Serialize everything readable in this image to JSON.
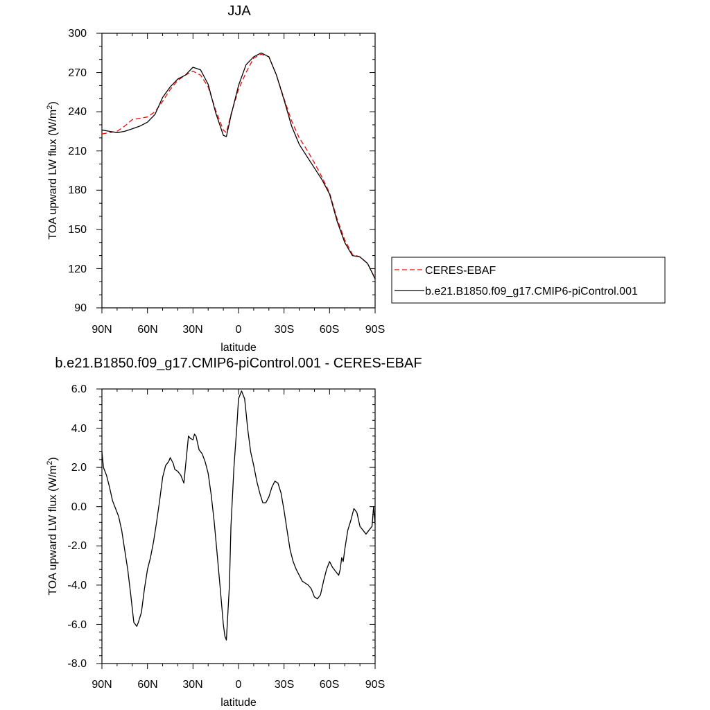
{
  "chart_data": [
    {
      "type": "line",
      "title": "JJA",
      "xlabel": "latitude",
      "ylabel_main": "TOA upward LW flux (W/m",
      "ylabel_sup": "2",
      "ylabel_close": ")",
      "xlim": [
        -90,
        90
      ],
      "ylim": [
        90,
        300
      ],
      "x_ticks": [
        {
          "value": -90,
          "label": "90N"
        },
        {
          "value": -60,
          "label": "60N"
        },
        {
          "value": -30,
          "label": "30N"
        },
        {
          "value": 0,
          "label": "0"
        },
        {
          "value": 30,
          "label": "30S"
        },
        {
          "value": 60,
          "label": "60S"
        },
        {
          "value": 90,
          "label": "90S"
        }
      ],
      "y_ticks": [
        {
          "value": 90,
          "label": "90"
        },
        {
          "value": 120,
          "label": "120"
        },
        {
          "value": 150,
          "label": "150"
        },
        {
          "value": 180,
          "label": "180"
        },
        {
          "value": 210,
          "label": "210"
        },
        {
          "value": 240,
          "label": "240"
        },
        {
          "value": 270,
          "label": "270"
        },
        {
          "value": 300,
          "label": "300"
        }
      ],
      "grid": false,
      "legend_position": "right",
      "x": [
        -90,
        -85,
        -80,
        -75,
        -70,
        -65,
        -60,
        -55,
        -50,
        -45,
        -40,
        -35,
        -30,
        -25,
        -20,
        -15,
        -10,
        -8,
        -5,
        0,
        5,
        10,
        15,
        20,
        25,
        30,
        35,
        40,
        45,
        50,
        55,
        60,
        65,
        70,
        75,
        80,
        85,
        88,
        90
      ],
      "series": [
        {
          "name": "CERES-EBAF",
          "color": "#ff0000",
          "dashed": true,
          "values": [
            223,
            224,
            225,
            229,
            234,
            235,
            236,
            240,
            248,
            257,
            264,
            268,
            271,
            268,
            259,
            241,
            226,
            224,
            238,
            257,
            270,
            281,
            284,
            282,
            268,
            250,
            233,
            220,
            211,
            201,
            190,
            178,
            158,
            142,
            131,
            129,
            124,
            117,
            113
          ]
        },
        {
          "name": "b.e21.B1850.f09_g17.CMIP6-piControl.001",
          "color": "#000000",
          "dashed": false,
          "values": [
            226,
            225,
            224,
            225,
            227,
            229,
            232,
            238,
            251,
            259,
            265,
            268,
            274,
            272,
            261,
            239,
            222,
            221,
            237,
            260,
            276,
            282,
            285,
            282,
            268,
            249,
            229,
            215,
            206,
            197,
            188,
            177,
            156,
            140,
            130,
            129,
            124,
            117,
            112
          ]
        }
      ]
    },
    {
      "type": "line",
      "title": "b.e21.B1850.f09_g17.CMIP6-piControl.001 - CERES-EBAF",
      "xlabel": "latitude",
      "ylabel_main": "TOA upward LW flux (W/m",
      "ylabel_sup": "2",
      "ylabel_close": ")",
      "xlim": [
        -90,
        90
      ],
      "ylim": [
        -8,
        6
      ],
      "x_ticks": [
        {
          "value": -90,
          "label": "90N"
        },
        {
          "value": -60,
          "label": "60N"
        },
        {
          "value": -30,
          "label": "30N"
        },
        {
          "value": 0,
          "label": "0"
        },
        {
          "value": 30,
          "label": "30S"
        },
        {
          "value": 60,
          "label": "60S"
        },
        {
          "value": 90,
          "label": "90S"
        }
      ],
      "y_ticks": [
        {
          "value": -8,
          "label": "-8.0"
        },
        {
          "value": -6,
          "label": "-6.0"
        },
        {
          "value": -4,
          "label": "-4.0"
        },
        {
          "value": -2,
          "label": "-2.0"
        },
        {
          "value": 0,
          "label": "0.0"
        },
        {
          "value": 2,
          "label": "2.0"
        },
        {
          "value": 4,
          "label": "4.0"
        },
        {
          "value": 6,
          "label": "6.0"
        }
      ],
      "grid": false,
      "x": [
        -90,
        -89,
        -87,
        -85,
        -83,
        -81,
        -79,
        -77,
        -75,
        -73,
        -71,
        -69,
        -67,
        -66,
        -64,
        -62,
        -60,
        -58,
        -56,
        -54,
        -52,
        -50,
        -48,
        -46,
        -45,
        -43,
        -42,
        -40,
        -38,
        -36,
        -35,
        -33,
        -32,
        -30,
        -29,
        -28,
        -26,
        -24,
        -22,
        -20,
        -18,
        -16,
        -14,
        -12,
        -10,
        -9,
        -8,
        -6,
        -5,
        -3,
        -1,
        0,
        2,
        4,
        5,
        6,
        8,
        10,
        12,
        14,
        16,
        18,
        20,
        22,
        24,
        26,
        28,
        30,
        32,
        34,
        36,
        38,
        40,
        42,
        44,
        46,
        48,
        50,
        52,
        54,
        56,
        58,
        60,
        62,
        64,
        66,
        67,
        68,
        69,
        70,
        72,
        74,
        76,
        78,
        80,
        82,
        84,
        86,
        88,
        89,
        90
      ],
      "series": [
        {
          "name": "",
          "color": "#000000",
          "dashed": false,
          "values": [
            2.8,
            2.0,
            1.6,
            1.0,
            0.3,
            -0.1,
            -0.5,
            -1.2,
            -2.2,
            -3.2,
            -4.5,
            -5.9,
            -6.1,
            -5.9,
            -5.4,
            -4.2,
            -3.2,
            -2.6,
            -1.8,
            -0.8,
            0.3,
            1.5,
            2.1,
            2.3,
            2.5,
            2.2,
            1.9,
            1.8,
            1.6,
            1.2,
            2.0,
            3.6,
            3.5,
            3.4,
            3.7,
            3.6,
            2.9,
            2.7,
            2.3,
            1.7,
            0.6,
            -0.8,
            -2.5,
            -4.2,
            -6.0,
            -6.6,
            -6.8,
            -4.0,
            -1.0,
            2.0,
            4.2,
            5.5,
            5.9,
            5.5,
            4.8,
            4.0,
            2.8,
            2.1,
            1.3,
            0.7,
            0.2,
            0.2,
            0.5,
            1.0,
            1.3,
            1.2,
            0.7,
            -0.2,
            -1.2,
            -2.2,
            -2.8,
            -3.2,
            -3.5,
            -3.8,
            -3.9,
            -4.0,
            -4.2,
            -4.6,
            -4.7,
            -4.5,
            -3.8,
            -3.2,
            -2.8,
            -3.1,
            -3.3,
            -3.5,
            -3.2,
            -2.6,
            -2.8,
            -2.2,
            -1.2,
            -0.7,
            -0.1,
            -0.3,
            -1.0,
            -1.2,
            -1.4,
            -1.2,
            -1.0,
            0.0,
            -0.9
          ]
        }
      ]
    }
  ]
}
